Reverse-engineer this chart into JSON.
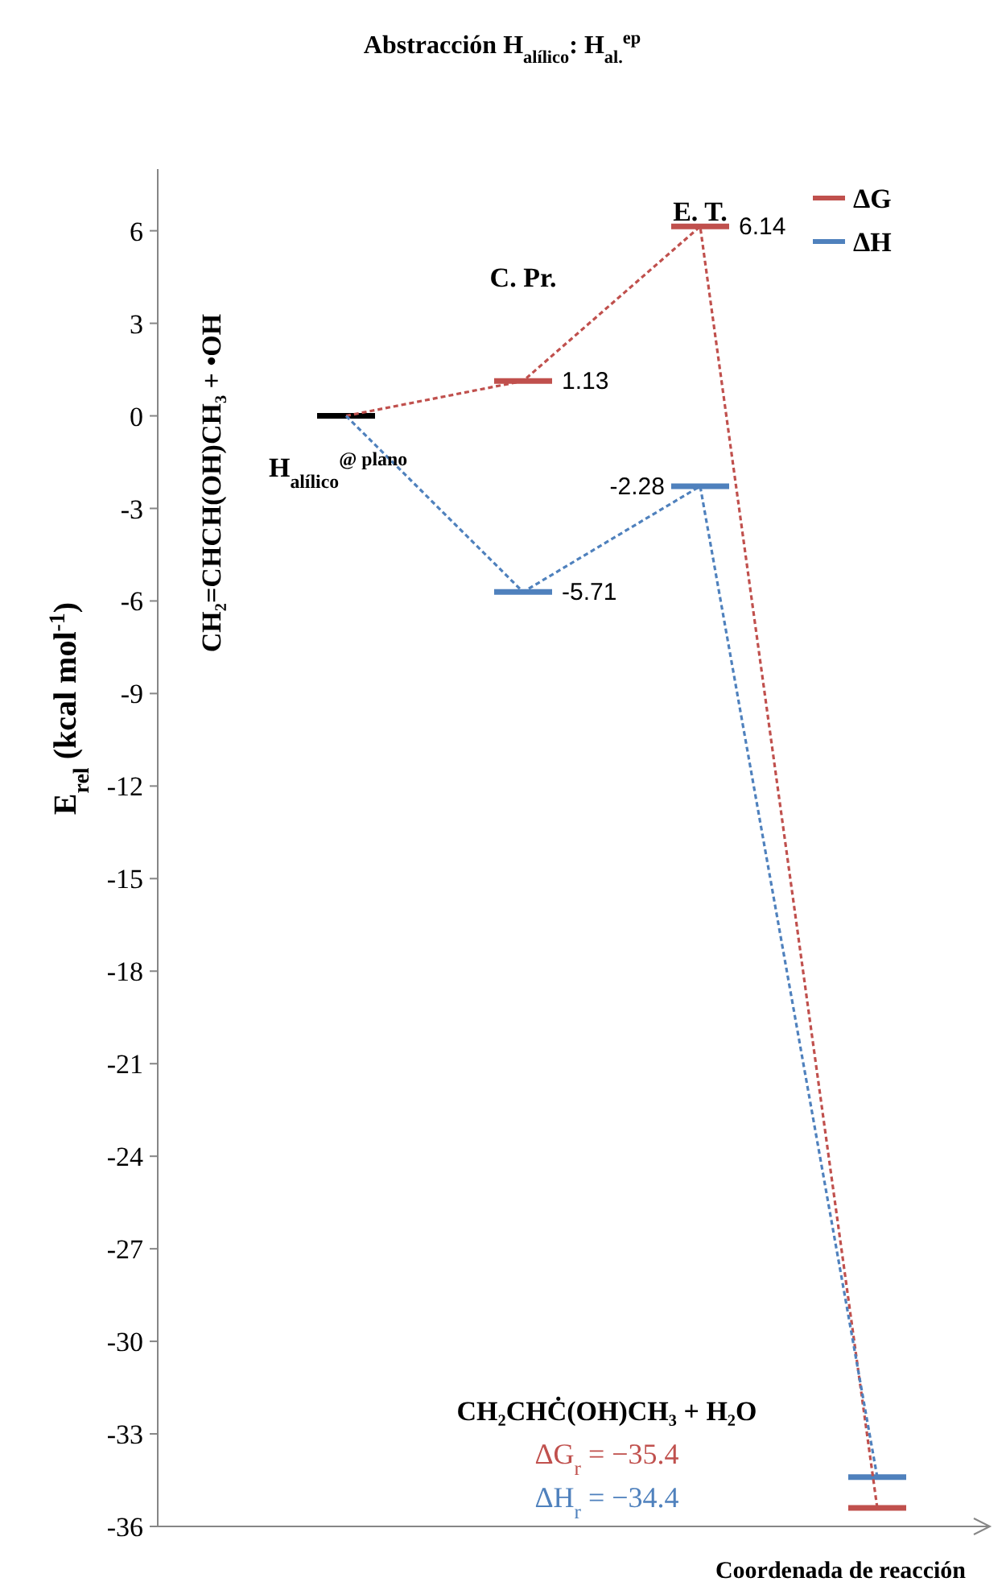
{
  "chart_data": {
    "type": "line",
    "title": "Abstracción H$_{alílico}$: H$_{al.}$$^{ep}$",
    "xlabel": "Coordenada de reacción",
    "ylabel": "E$_{rel}$  (kcal  mol$^{-1}$)",
    "categories": [
      null,
      null,
      null,
      null
    ],
    "series": [
      {
        "name": "ΔG",
        "color": "#c0504d",
        "colors": [
          "#000000",
          "#c0504d",
          "#c0504d",
          "#c0504d"
        ],
        "values": [
          0,
          1.13,
          6.14,
          -35.4
        ],
        "value_labels": [
          null,
          "1.13",
          "6.14",
          null
        ]
      },
      {
        "name": "ΔH",
        "color": "#4f81bd",
        "colors": [
          "#000000",
          "#4f81bd",
          "#4f81bd",
          "#4f81bd"
        ],
        "values": [
          0,
          -5.71,
          -2.28,
          -34.4
        ],
        "value_labels": [
          null,
          "-5.71",
          "-2.28",
          null
        ]
      }
    ],
    "ylim": [
      -36,
      8
    ],
    "yticks": [
      -36,
      -33,
      -30,
      -27,
      -24,
      -21,
      -18,
      -15,
      -12,
      -9,
      -6,
      -3,
      0,
      3,
      6
    ],
    "grid": false,
    "legend": "top right",
    "line_style": "dotted",
    "marker": "none",
    "annotations": [
      "E. T.",
      "C. Pr.",
      "H$_{alílico}$$^{@ plano}$",
      "CH₂=CHCH(OH)CH₃ + •OH",
      "CH₂CHĊ(OH)CH₃  + H₂O",
      "ΔG$_{r}$ = −35.4",
      "ΔH$_{r}$ = −34.4"
    ]
  }
}
